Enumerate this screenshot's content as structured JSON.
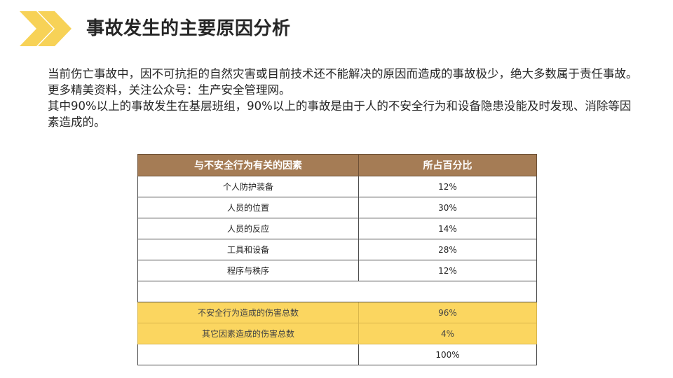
{
  "header": {
    "logo_icon": "double-chevron-icon",
    "title": "事故发生的主要原因分析"
  },
  "intro": {
    "line1": "当前伤亡事故中，因不可抗拒的自然灾害或目前技术还不能解决的原因而造成的事故极少，绝大多数属于责任事故。更多精美资料，关注公众号：生产安全管理网。",
    "line2": "其中90%以上的事故发生在基层班组，90%以上的事故是由于人的不安全行为和设备隐患没能及时发现、消除等因素造成的。"
  },
  "table": {
    "headers": [
      "与不安全行为有关的因素",
      "所占百分比"
    ],
    "rows": [
      [
        "个人防护装备",
        "12%"
      ],
      [
        "人员的位置",
        "30%"
      ],
      [
        "人员的反应",
        "14%"
      ],
      [
        "工具和设备",
        "28%"
      ],
      [
        "程序与秩序",
        "12%"
      ]
    ],
    "summary": [
      [
        "不安全行为造成的伤害总数",
        "96%"
      ],
      [
        "其它因素造成的伤害总数",
        "4%"
      ]
    ],
    "total": [
      "",
      "100%"
    ]
  },
  "colors": {
    "header_bg": "#a57c55",
    "highlight_bg": "#fbd660",
    "logo_yellow": "#f7d257"
  }
}
